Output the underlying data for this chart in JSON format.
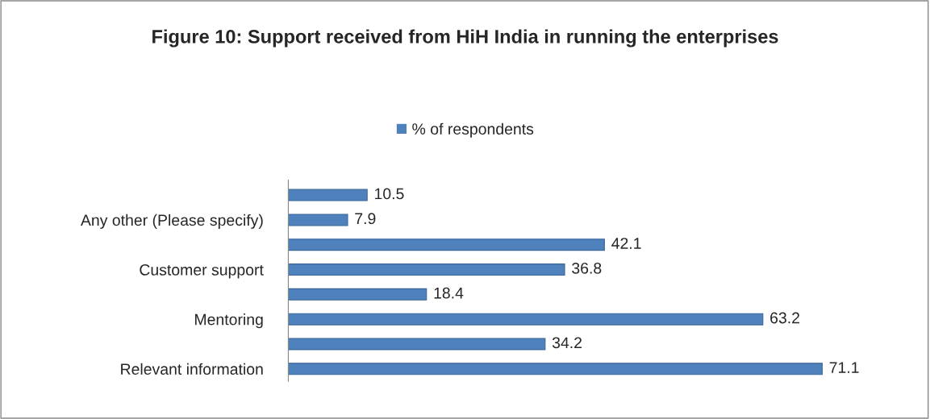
{
  "chart_data": {
    "type": "bar",
    "orientation": "horizontal",
    "title": "Figure 10: Support received from HiH India in running the enterprises",
    "categories": [
      null,
      "Any other (Please specify)",
      null,
      "Customer support",
      null,
      "Mentoring",
      null,
      "Relevant information"
    ],
    "series": [
      {
        "name": "% of respondents",
        "color": "#4f81bd",
        "values": [
          10.5,
          7.9,
          42.1,
          36.8,
          18.4,
          63.2,
          34.2,
          71.1
        ]
      }
    ],
    "data_labels": true,
    "legend": "top",
    "grid": false
  }
}
